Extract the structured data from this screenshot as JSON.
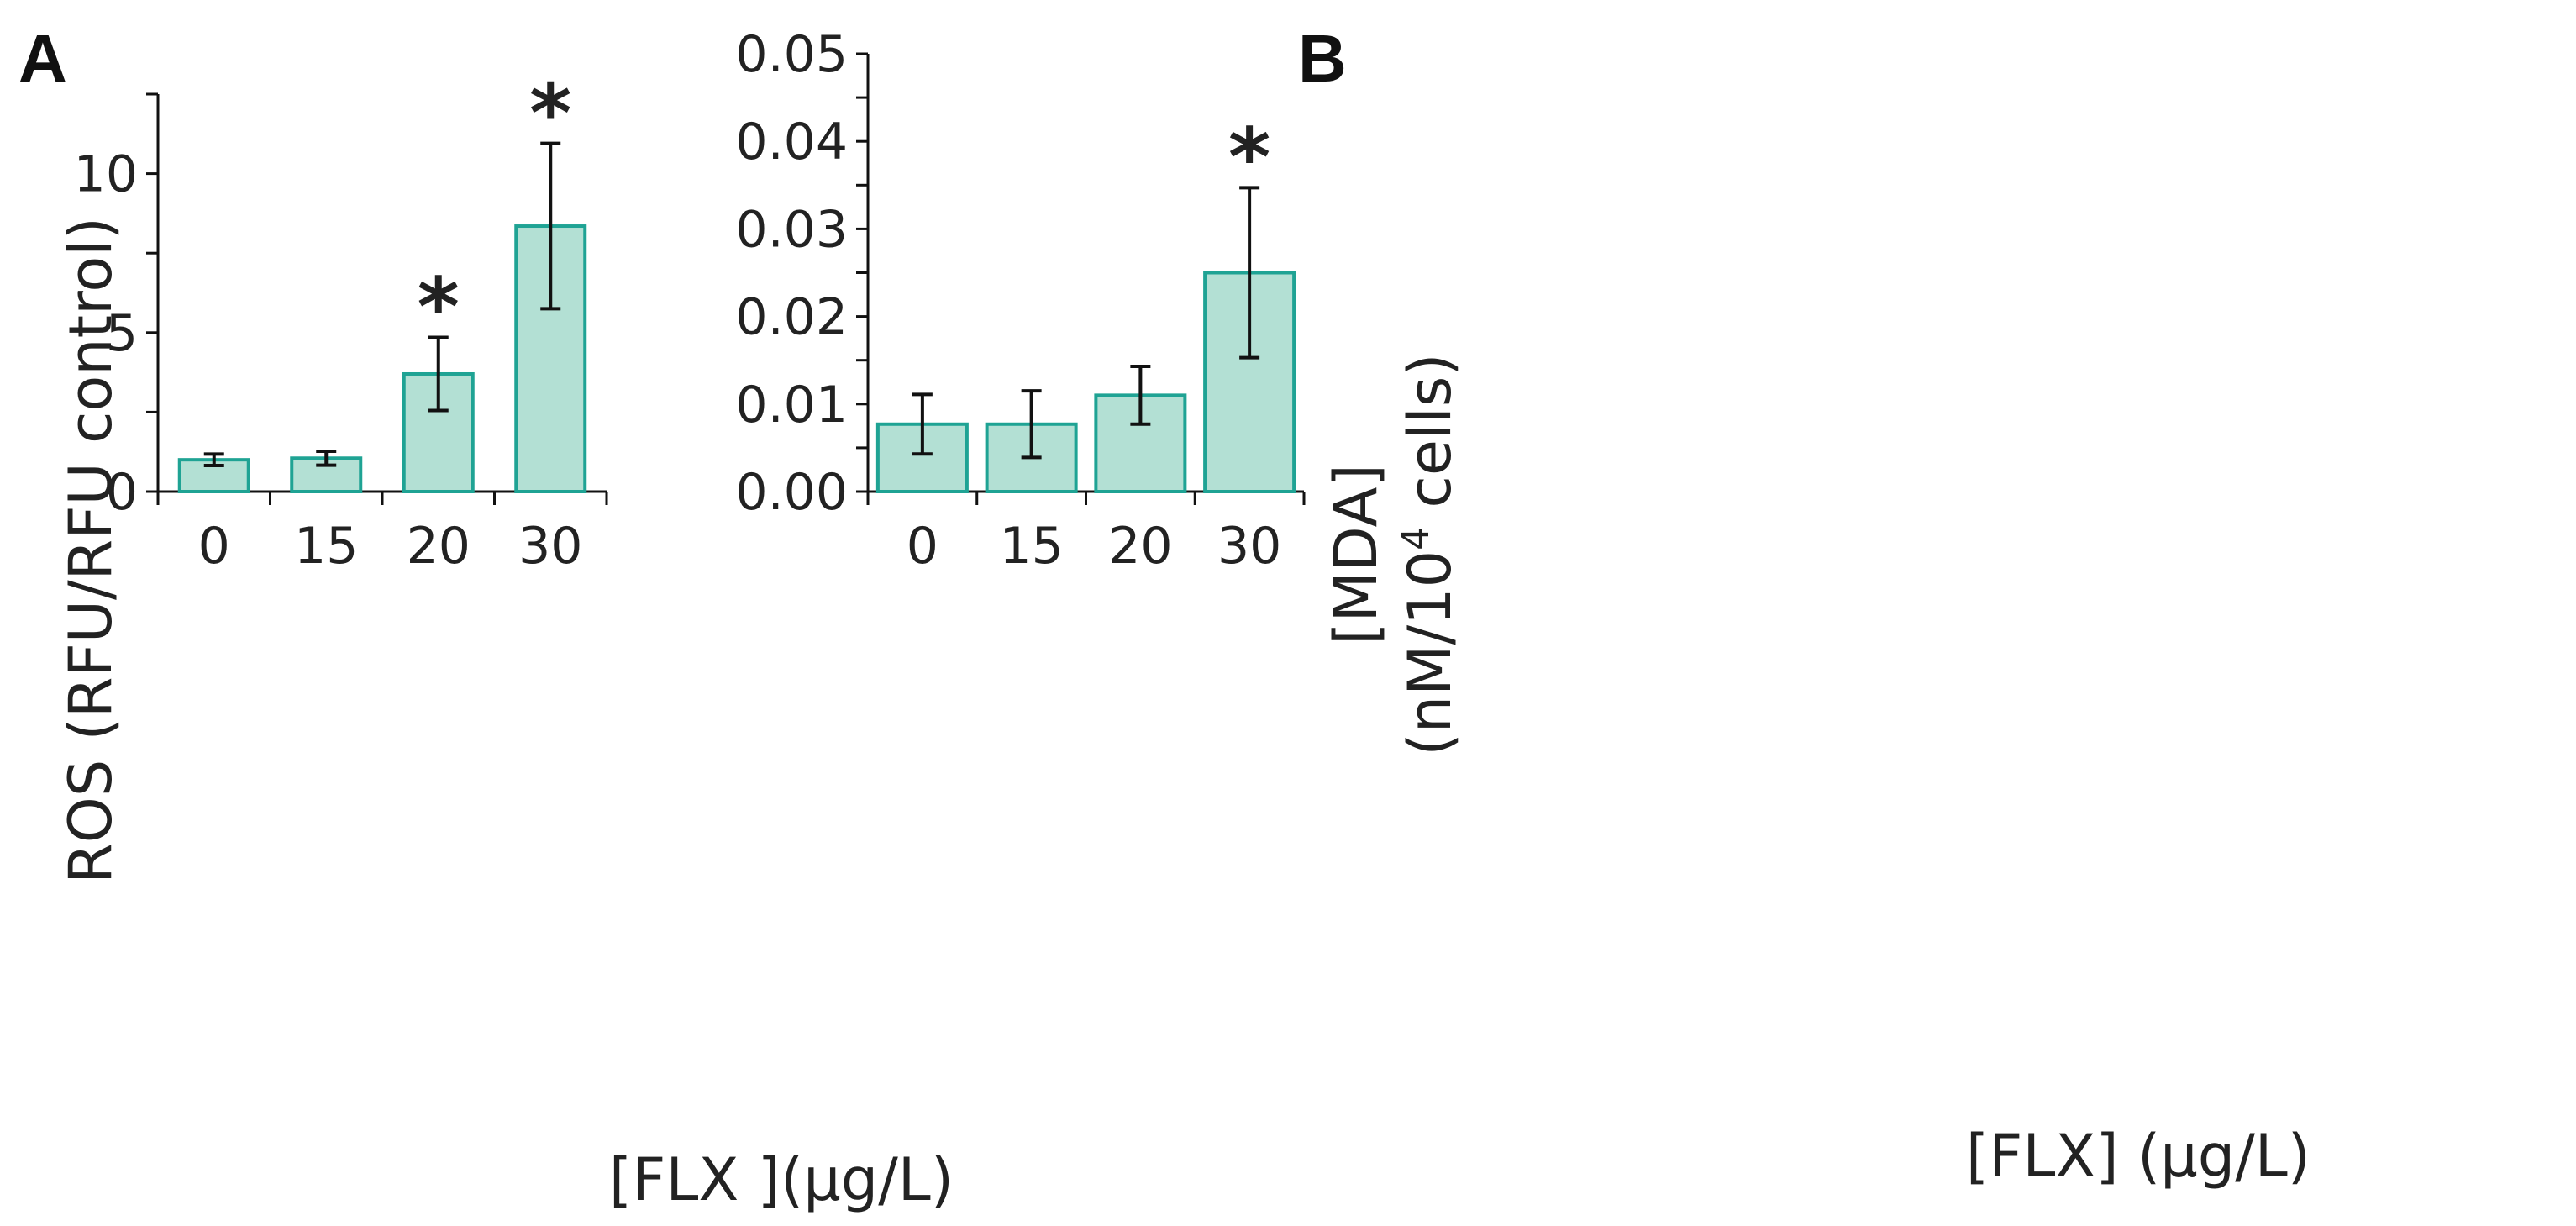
{
  "style": {
    "bar_fill": "#b3e0d4",
    "bar_stroke": "#1fa394",
    "axis_color": "#111111"
  },
  "chart_data": [
    {
      "panel": "A",
      "type": "bar",
      "categories": [
        "0",
        "15",
        "20",
        "30"
      ],
      "values": [
        1.0,
        1.05,
        3.7,
        8.35
      ],
      "errors": [
        0.18,
        0.22,
        1.15,
        2.6
      ],
      "significant": [
        false,
        false,
        true,
        true
      ],
      "marker": "*",
      "xlabel": "[FLX ](µg/L)",
      "ylabel": "ROS (RFU/RFU control)",
      "ylim": [
        0,
        12.5
      ],
      "yticks": [
        0,
        5,
        10
      ],
      "ytick_labels": [
        "0",
        "5",
        "10"
      ],
      "minor_yticks": [
        2.5,
        7.5,
        12.5
      ],
      "grid": false
    },
    {
      "panel": "B",
      "type": "bar",
      "categories": [
        "0",
        "15",
        "20",
        "30"
      ],
      "values": [
        0.0077,
        0.0077,
        0.011,
        0.025
      ],
      "errors": [
        0.0034,
        0.0038,
        0.0033,
        0.0097
      ],
      "significant": [
        false,
        false,
        false,
        true
      ],
      "marker": "*",
      "xlabel": "[FLX] (µg/L)",
      "ylabel_line1": "[MDA]",
      "ylabel_line2_prefix": "(nM/10",
      "ylabel_line2_sup": "4",
      "ylabel_line2_suffix": " cells)",
      "ylim": [
        0,
        0.05
      ],
      "yticks": [
        0,
        0.01,
        0.02,
        0.03,
        0.04,
        0.05
      ],
      "ytick_labels": [
        "0.00",
        "0.01",
        "0.02",
        "0.03",
        "0.04",
        "0.05"
      ],
      "minor_yticks": [
        0.005,
        0.015,
        0.025,
        0.035,
        0.045
      ],
      "grid": false
    }
  ]
}
